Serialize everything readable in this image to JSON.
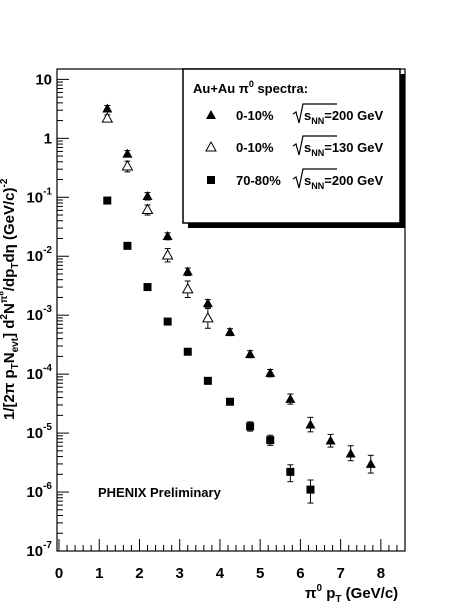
{
  "chart_data": {
    "type": "scatter",
    "title": "",
    "xlabel": {
      "main": "π",
      "sup": "0",
      "mid": " p",
      "sub": "T",
      "tail": " (GeV/c)"
    },
    "ylabel": {
      "p1": "1/[2π p",
      "s1": "T",
      "p2": "N",
      "s2": "evt",
      "p3": "] d",
      "sup1": "2",
      "p4": "N",
      "sup2": "π⁰",
      "p5": "/dp",
      "s3": "T",
      "p6": "dη (GeV/c)",
      "sup3": "-2"
    },
    "xlim": [
      -0.05,
      8.6
    ],
    "ylim": [
      1e-07,
      15
    ],
    "yscale": "log",
    "x_ticks": [
      0,
      1,
      2,
      3,
      4,
      5,
      6,
      7,
      8
    ],
    "x_tick_labels": [
      "0",
      "1",
      "2",
      "3",
      "4",
      "5",
      "6",
      "7",
      "8"
    ],
    "y_ticks": [
      {
        "value": 10,
        "base": "10",
        "exp": ""
      },
      {
        "value": 1,
        "base": "1",
        "exp": ""
      },
      {
        "value": 0.1,
        "base": "10",
        "exp": "-1"
      },
      {
        "value": 0.01,
        "base": "10",
        "exp": "-2"
      },
      {
        "value": 0.001,
        "base": "10",
        "exp": "-3"
      },
      {
        "value": 0.0001,
        "base": "10",
        "exp": "-4"
      },
      {
        "value": 1e-05,
        "base": "10",
        "exp": "-5"
      },
      {
        "value": 1e-06,
        "base": "10",
        "exp": "-6"
      },
      {
        "value": 1e-07,
        "base": "10",
        "exp": "-7"
      }
    ],
    "legend": {
      "placement": "top-right",
      "header": {
        "text": "Au+Au  π",
        "sup": "0",
        "tail": " spectra:"
      },
      "entries": [
        {
          "series": 0,
          "cent": "0-10%",
          "sub": "NN",
          "energy": "=200 GeV"
        },
        {
          "series": 1,
          "cent": "0-10%",
          "sub": "NN",
          "energy": "=130 GeV"
        },
        {
          "series": 2,
          "cent": "70-80%",
          "sub": "NN",
          "energy": "=200 GeV"
        }
      ],
      "sqrt_var": "s"
    },
    "annotation": "PHENIX Preliminary",
    "series": [
      {
        "marker": "filled-triangle",
        "points": [
          {
            "x": 1.2,
            "y": 3.2,
            "elo": 2.8,
            "ehi": 3.6
          },
          {
            "x": 1.7,
            "y": 0.55,
            "elo": 0.48,
            "ehi": 0.62
          },
          {
            "x": 2.2,
            "y": 0.105,
            "elo": 0.09,
            "ehi": 0.12
          },
          {
            "x": 2.7,
            "y": 0.022,
            "elo": 0.019,
            "ehi": 0.025
          },
          {
            "x": 3.2,
            "y": 0.0055,
            "elo": 0.0047,
            "ehi": 0.0063
          },
          {
            "x": 3.7,
            "y": 0.0016,
            "elo": 0.00136,
            "ehi": 0.00184
          },
          {
            "x": 4.25,
            "y": 0.00052,
            "elo": 0.00045,
            "ehi": 0.00059
          },
          {
            "x": 4.75,
            "y": 0.00022,
            "elo": 0.00019,
            "ehi": 0.00025
          },
          {
            "x": 5.25,
            "y": 0.000105,
            "elo": 9e-05,
            "ehi": 0.00012
          },
          {
            "x": 5.75,
            "y": 3.8e-05,
            "elo": 3.1e-05,
            "ehi": 4.6e-05
          },
          {
            "x": 6.25,
            "y": 1.4e-05,
            "elo": 1.05e-05,
            "ehi": 1.85e-05
          },
          {
            "x": 6.75,
            "y": 7.5e-06,
            "elo": 5.8e-06,
            "ehi": 9.5e-06
          },
          {
            "x": 7.25,
            "y": 4.5e-06,
            "elo": 3.4e-06,
            "ehi": 6.1e-06
          },
          {
            "x": 7.75,
            "y": 3e-06,
            "elo": 2.1e-06,
            "ehi": 4.2e-06
          }
        ]
      },
      {
        "marker": "open-triangle",
        "points": [
          {
            "x": 1.2,
            "y": 2.2,
            "elo": 1.9,
            "ehi": 2.5
          },
          {
            "x": 1.7,
            "y": 0.34,
            "elo": 0.27,
            "ehi": 0.41
          },
          {
            "x": 2.2,
            "y": 0.062,
            "elo": 0.05,
            "ehi": 0.074
          },
          {
            "x": 2.7,
            "y": 0.0105,
            "elo": 0.008,
            "ehi": 0.0135
          },
          {
            "x": 3.2,
            "y": 0.0028,
            "elo": 0.002,
            "ehi": 0.0038
          },
          {
            "x": 3.7,
            "y": 0.0009,
            "elo": 0.0006,
            "ehi": 0.0013
          }
        ]
      },
      {
        "marker": "filled-square",
        "points": [
          {
            "x": 1.2,
            "y": 0.088,
            "elo": 0.078,
            "ehi": 0.098
          },
          {
            "x": 1.7,
            "y": 0.015,
            "elo": 0.0135,
            "ehi": 0.0165
          },
          {
            "x": 2.2,
            "y": 0.003,
            "elo": 0.0027,
            "ehi": 0.0033
          },
          {
            "x": 2.7,
            "y": 0.00078,
            "elo": 0.0007,
            "ehi": 0.00086
          },
          {
            "x": 3.2,
            "y": 0.00024,
            "elo": 0.000215,
            "ehi": 0.000265
          },
          {
            "x": 3.7,
            "y": 7.7e-05,
            "elo": 6.8e-05,
            "ehi": 8.6e-05
          },
          {
            "x": 4.25,
            "y": 3.4e-05,
            "elo": 3e-05,
            "ehi": 3.8e-05
          },
          {
            "x": 4.75,
            "y": 1.3e-05,
            "elo": 1.08e-05,
            "ehi": 1.55e-05
          },
          {
            "x": 5.25,
            "y": 7.6e-06,
            "elo": 6.2e-06,
            "ehi": 9.2e-06
          },
          {
            "x": 5.75,
            "y": 2.2e-06,
            "elo": 1.5e-06,
            "ehi": 2.9e-06
          },
          {
            "x": 6.25,
            "y": 1.1e-06,
            "elo": 6.5e-07,
            "ehi": 1.6e-06
          }
        ]
      }
    ]
  }
}
